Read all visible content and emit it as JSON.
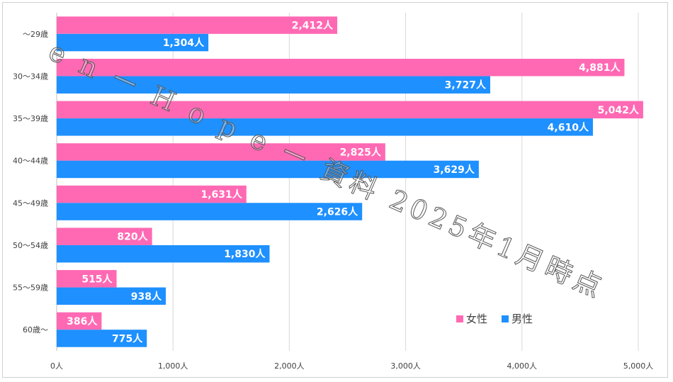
{
  "chart_data": {
    "type": "bar",
    "orientation": "horizontal",
    "categories": [
      "～29歳",
      "30～34歳",
      "35～39歳",
      "40～44歳",
      "45～49歳",
      "50～54歳",
      "55～59歳",
      "60歳～"
    ],
    "series": [
      {
        "name": "女性",
        "color": "#FF69B4",
        "values": [
          2412,
          4881,
          5042,
          2825,
          1631,
          820,
          515,
          386
        ],
        "labels": [
          "2,412人",
          "4,881人",
          "5,042人",
          "2,825人",
          "1,631人",
          "820人",
          "515人",
          "386人"
        ]
      },
      {
        "name": "男性",
        "color": "#1E90FF",
        "values": [
          1304,
          3727,
          4610,
          3629,
          2626,
          1830,
          938,
          775
        ],
        "labels": [
          "1,304人",
          "3,727人",
          "4,610人",
          "3,629人",
          "2,626人",
          "1,830人",
          "938人",
          "775人"
        ]
      }
    ],
    "xlim": [
      0,
      5000
    ],
    "xticks": [
      0,
      1000,
      2000,
      3000,
      4000,
      5000
    ],
    "xtick_labels": [
      "0人",
      "1,000人",
      "2,000人",
      "3,000人",
      "4,000人",
      "5,000人"
    ],
    "grid": true,
    "legend_position": "bottom-right"
  },
  "watermark": "e n ー H o p e ー 資料 2025年1月時点"
}
